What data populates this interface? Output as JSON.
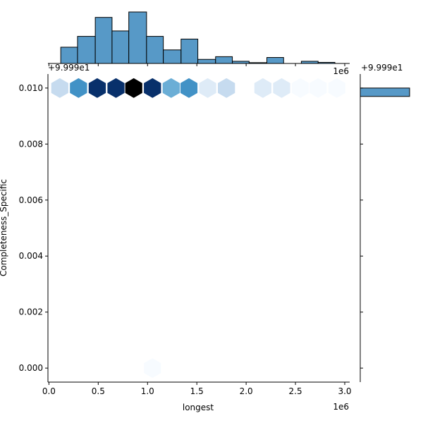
{
  "chart_data": {
    "type": "hexbin",
    "xlabel": "longest",
    "ylabel": "Completeness_Specific",
    "x_offset_text": "1e6",
    "y_offset_text": "+9.999e1",
    "right_offset_text": "+9.999e1",
    "top_offset_text": "1e6",
    "xlim": [
      -0.01,
      3.05
    ],
    "ylim": [
      -0.0005,
      0.0105
    ],
    "x_ticks": [
      "0.0",
      "0.5",
      "1.0",
      "1.5",
      "2.0",
      "2.5",
      "3.0"
    ],
    "x_tick_values": [
      0,
      0.5,
      1.0,
      1.5,
      2.0,
      2.5,
      3.0
    ],
    "y_ticks": [
      "0.000",
      "0.002",
      "0.004",
      "0.006",
      "0.008",
      "0.010"
    ],
    "y_tick_values": [
      0,
      0.002,
      0.004,
      0.006,
      0.008,
      0.01
    ],
    "hexbins": [
      {
        "x": 0.11,
        "y": 0.01,
        "level": 0.2
      },
      {
        "x": 0.3,
        "y": 0.01,
        "level": 0.6
      },
      {
        "x": 0.49,
        "y": 0.01,
        "level": 0.88
      },
      {
        "x": 0.68,
        "y": 0.01,
        "level": 0.85
      },
      {
        "x": 0.86,
        "y": 0.01,
        "level": 1.0
      },
      {
        "x": 1.05,
        "y": 0.01,
        "level": 0.85
      },
      {
        "x": 1.24,
        "y": 0.01,
        "level": 0.45
      },
      {
        "x": 1.42,
        "y": 0.01,
        "level": 0.6
      },
      {
        "x": 1.61,
        "y": 0.01,
        "level": 0.15
      },
      {
        "x": 1.8,
        "y": 0.01,
        "level": 0.28
      },
      {
        "x": 2.17,
        "y": 0.01,
        "level": 0.14
      },
      {
        "x": 2.36,
        "y": 0.01,
        "level": 0.07
      },
      {
        "x": 2.55,
        "y": 0.01,
        "level": 0.04
      },
      {
        "x": 2.73,
        "y": 0.01,
        "level": 0.04
      },
      {
        "x": 2.92,
        "y": 0.01,
        "level": 0.04
      },
      {
        "x": 1.05,
        "y": 0.0,
        "level": 0.04
      }
    ],
    "top_histogram": {
      "bin_edges": [
        0.12,
        0.29,
        0.47,
        0.64,
        0.81,
        0.99,
        1.16,
        1.34,
        1.51,
        1.69,
        1.86,
        2.03,
        2.21,
        2.38,
        2.56,
        2.73,
        2.9
      ],
      "counts": [
        6,
        10,
        17,
        12,
        19,
        10,
        5,
        9,
        1.5,
        2.5,
        0.8,
        0.3,
        2.2,
        0,
        0.8,
        0.4
      ]
    },
    "right_histogram": {
      "bin_range": [
        0.0097,
        0.01
      ],
      "count": 1
    },
    "colors": {
      "bar": "#5799c7",
      "edge": "#000000",
      "colormap": [
        "#f7fbff",
        "#deebf7",
        "#c6dbef",
        "#9ecae1",
        "#6baed6",
        "#4292c6",
        "#2171b5",
        "#08306b",
        "#000000"
      ]
    }
  }
}
